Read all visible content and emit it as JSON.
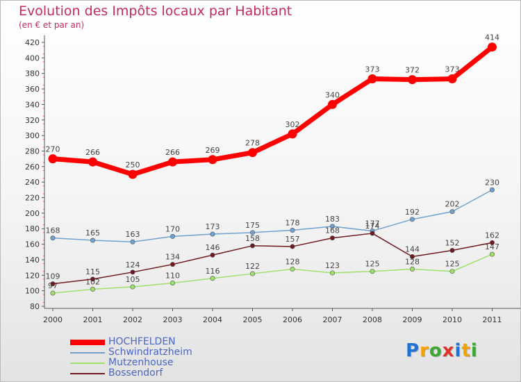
{
  "chart_data": {
    "type": "line",
    "title": "Evolution des Impôts locaux par Habitant",
    "subtitle": "(en € et par an)",
    "xlabel": "",
    "ylabel": "",
    "categories": [
      "2000",
      "2001",
      "2002",
      "2003",
      "2004",
      "2005",
      "2006",
      "2007",
      "2008",
      "2009",
      "2010",
      "2011"
    ],
    "ylim": [
      80,
      420
    ],
    "yticks": [
      80,
      100,
      120,
      140,
      160,
      180,
      200,
      220,
      240,
      260,
      280,
      300,
      320,
      340,
      360,
      380,
      400,
      420
    ],
    "grid": false,
    "legend_position": "bottom-left",
    "series": [
      {
        "name": "HOCHFELDEN",
        "color": "#ff0000",
        "emphasis": true,
        "values": [
          270,
          266,
          250,
          266,
          269,
          278,
          302,
          340,
          373,
          372,
          373,
          414
        ]
      },
      {
        "name": "Schwindratzheim",
        "color": "#6fa1d1",
        "emphasis": false,
        "values": [
          168,
          165,
          163,
          170,
          173,
          175,
          178,
          183,
          177,
          192,
          202,
          230
        ]
      },
      {
        "name": "Mutzenhouse",
        "color": "#9ee06b",
        "emphasis": false,
        "values": [
          97,
          102,
          105,
          110,
          116,
          122,
          128,
          123,
          125,
          128,
          125,
          147
        ]
      },
      {
        "name": "Bossendorf",
        "color": "#6f1a1f",
        "emphasis": false,
        "values": [
          109,
          115,
          124,
          134,
          146,
          158,
          157,
          168,
          174,
          144,
          152,
          162
        ]
      }
    ]
  },
  "branding": {
    "logo_letters": [
      "P",
      "r",
      "o",
      "x",
      "i",
      "t",
      "i"
    ],
    "logo_colors": [
      "#1e73d6",
      "#f5a300",
      "#3aa832",
      "#e0312b",
      "#1e73d6",
      "#f5a300",
      "#3aa832"
    ]
  }
}
